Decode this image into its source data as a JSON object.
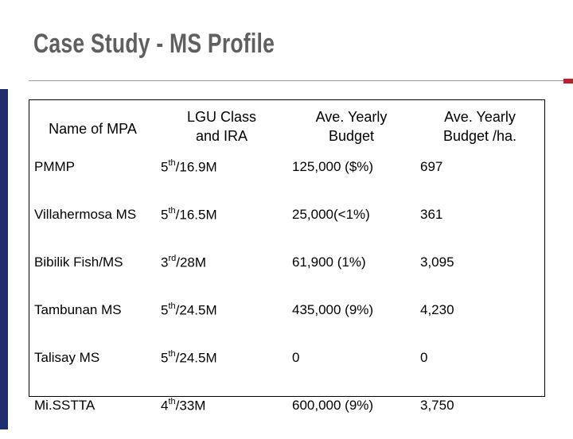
{
  "slide": {
    "title": "Case Study - MS Profile"
  },
  "table": {
    "headers": [
      [
        "Name of MPA"
      ],
      [
        "LGU Class",
        "and IRA"
      ],
      [
        "Ave. Yearly",
        "Budget"
      ],
      [
        "Ave. Yearly",
        "Budget /ha."
      ]
    ],
    "rows": [
      {
        "name": "PMMP",
        "class_num": "5",
        "class_sup": "th",
        "ira": "/16.9M",
        "budget": "125,000 ($%)",
        "per_ha": "697"
      },
      {
        "name": "Villahermosa MS",
        "class_num": "5",
        "class_sup": "th",
        "ira": "/16.5M",
        "budget": "25,000(<1%)",
        "per_ha": "361"
      },
      {
        "name": "Bibilik Fish/MS",
        "class_num": "3",
        "class_sup": "rd",
        "ira": "/28M",
        "budget": "61,900 (1%)",
        "per_ha": "3,095"
      },
      {
        "name": "Tambunan MS",
        "class_num": "5",
        "class_sup": "th",
        "ira": "/24.5M",
        "budget": "435,000 (9%)",
        "per_ha": "4,230"
      },
      {
        "name": "Talisay MS",
        "class_num": "5",
        "class_sup": "th",
        "ira": "/24.5M",
        "budget": "0",
        "per_ha": "0"
      },
      {
        "name": "Mi.SSTTA",
        "class_num": "4",
        "class_sup": "th",
        "ira": "/33M",
        "budget": "600,000 (9%)",
        "per_ha": "3,750"
      }
    ]
  },
  "colors": {
    "title": "#5f5f5f",
    "left_bar": "#1f2f6e",
    "accent": "#c41e2a"
  }
}
